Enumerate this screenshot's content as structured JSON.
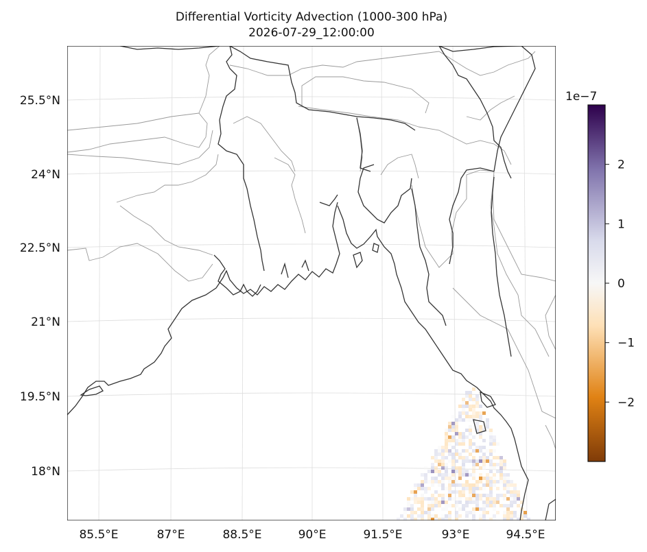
{
  "title": {
    "line1": "Differential Vorticity Advection (1000-300 hPa)",
    "line2": "2026-07-29_12:00:00"
  },
  "map": {
    "lon_ticks": [
      "85.5°E",
      "87°E",
      "88.5°E",
      "90°E",
      "91.5°E",
      "93°E",
      "94.5°E"
    ],
    "lat_ticks": [
      "25.5°N",
      "24°N",
      "22.5°N",
      "21°N",
      "19.5°N",
      "18°N"
    ],
    "grid": true
  },
  "colorbar": {
    "exponent_label": "1e−7",
    "tick_labels": [
      "2",
      "1",
      "0",
      "−1",
      "−2"
    ],
    "tick_values": [
      2,
      1,
      0,
      -1,
      -2
    ],
    "range": [
      -3,
      3
    ],
    "colors": {
      "max": "#2d004b",
      "high": "#8073ac",
      "mid_high": "#d8daeb",
      "zero": "#f7f7f7",
      "mid_low": "#fee0b6",
      "low": "#e08214",
      "min": "#7f3b08"
    }
  },
  "colors": {
    "coastline": "#333333",
    "borders": "#999999",
    "gridlines": "#dddddd"
  }
}
